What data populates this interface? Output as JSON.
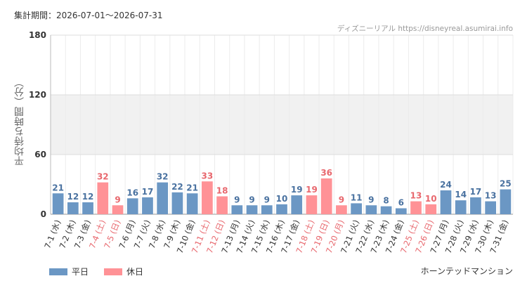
{
  "header": {
    "period": "集計期間：2026-07-01～2026-07-31",
    "credit": "ディズニーリアル https://disneyreal.asumirai.info"
  },
  "footer": {
    "attraction": "ホーンテッドマンション"
  },
  "colors": {
    "weekday": "#6b97c4",
    "holiday": "#ff9296",
    "weekday_text": "#4a72a0",
    "holiday_text": "#e8686e",
    "band": "#f1f1f1"
  },
  "chart_data": {
    "type": "bar",
    "ylabel": "平均待ち時間（分）",
    "ylim": [
      0,
      180
    ],
    "yticks": [
      0,
      60,
      120,
      180
    ],
    "shaded_band": [
      60,
      120
    ],
    "grid": true,
    "legend_position": "bottom-left",
    "legend": [
      {
        "key": "weekday",
        "label": "平日"
      },
      {
        "key": "holiday",
        "label": "休日"
      }
    ],
    "categories": [
      "7-1 (水)",
      "7-2 (木)",
      "7-3 (金)",
      "7-4 (土)",
      "7-5 (日)",
      "7-6 (月)",
      "7-7 (火)",
      "7-8 (水)",
      "7-9 (木)",
      "7-10 (金)",
      "7-11 (土)",
      "7-12 (日)",
      "7-13 (月)",
      "7-14 (火)",
      "7-15 (水)",
      "7-16 (木)",
      "7-17 (金)",
      "7-18 (土)",
      "7-19 (日)",
      "7-20 (月)",
      "7-21 (火)",
      "7-22 (水)",
      "7-23 (木)",
      "7-24 (金)",
      "7-25 (土)",
      "7-26 (日)",
      "7-27 (月)",
      "7-28 (火)",
      "7-29 (水)",
      "7-30 (木)",
      "7-31 (金)"
    ],
    "values": [
      21,
      12,
      12,
      32,
      9,
      16,
      17,
      32,
      22,
      21,
      33,
      18,
      9,
      9,
      9,
      10,
      19,
      19,
      36,
      9,
      11,
      9,
      8,
      6,
      13,
      10,
      24,
      14,
      17,
      13,
      25
    ],
    "day_type": [
      "weekday",
      "weekday",
      "weekday",
      "holiday",
      "holiday",
      "weekday",
      "weekday",
      "weekday",
      "weekday",
      "weekday",
      "holiday",
      "holiday",
      "weekday",
      "weekday",
      "weekday",
      "weekday",
      "weekday",
      "holiday",
      "holiday",
      "holiday",
      "weekday",
      "weekday",
      "weekday",
      "weekday",
      "holiday",
      "holiday",
      "weekday",
      "weekday",
      "weekday",
      "weekday",
      "weekday"
    ]
  }
}
